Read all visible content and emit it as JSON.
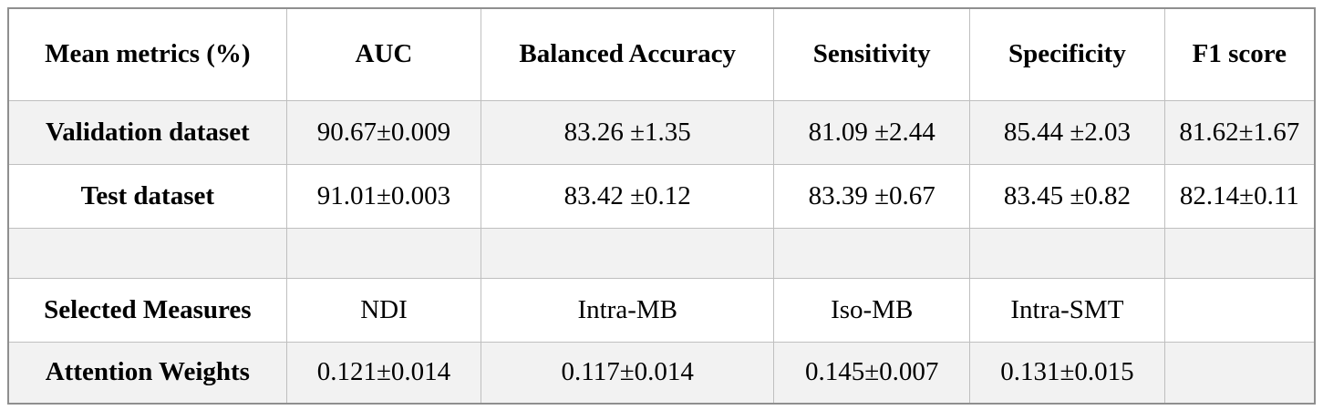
{
  "table": {
    "columns": [
      "Mean metrics (%)",
      "AUC",
      "Balanced Accuracy",
      "Sensitivity",
      "Specificity",
      "F1 score"
    ],
    "rows": [
      {
        "label": "Validation dataset",
        "values": [
          "90.67±0.009",
          "83.26 ±1.35",
          "81.09 ±2.44",
          "85.44 ±2.03",
          "81.62±1.67"
        ]
      },
      {
        "label": "Test dataset",
        "values": [
          "91.01±0.003",
          "83.42 ±0.12",
          "83.39 ±0.67",
          "83.45 ±0.82",
          "82.14±0.11"
        ]
      },
      {
        "label": "",
        "values": [
          "",
          "",
          "",
          "",
          ""
        ]
      },
      {
        "label": "Selected Measures",
        "values": [
          "NDI",
          "Intra-MB",
          "Iso-MB",
          "Intra-SMT",
          ""
        ]
      },
      {
        "label": "Attention Weights",
        "values": [
          "0.121±0.014",
          "0.117±0.014",
          "0.145±0.007",
          "0.131±0.015",
          ""
        ]
      }
    ],
    "colors": {
      "shaded_row_bg": "#f2f2f2",
      "inner_border": "#bfbfbf",
      "outer_border": "#8f8f8f",
      "text": "#000000",
      "background": "#ffffff"
    }
  }
}
